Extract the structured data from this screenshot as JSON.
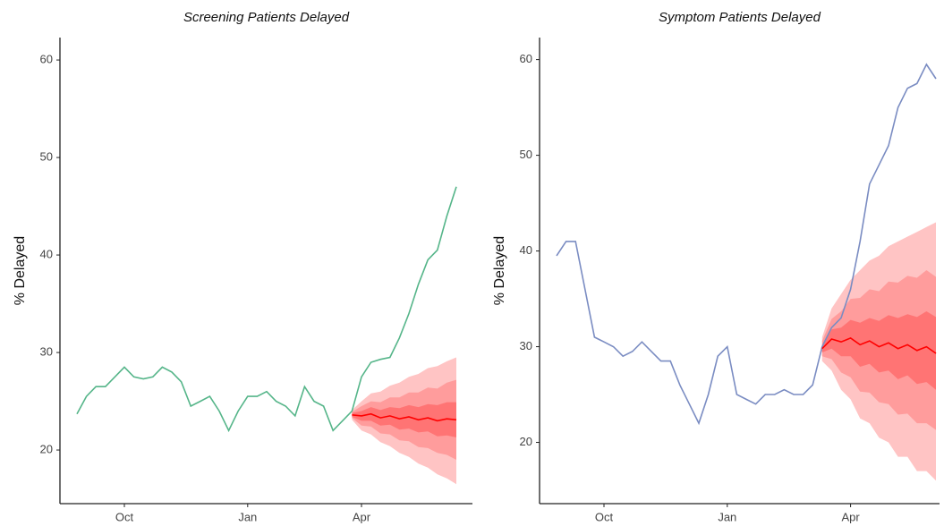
{
  "chart_data": [
    {
      "type": "line",
      "title": "Screening Patients Delayed",
      "y_label": "% Delayed",
      "categories": [
        null,
        null,
        null,
        null,
        null,
        "Oct",
        null,
        null,
        null,
        null,
        null,
        null,
        null,
        null,
        null,
        null,
        null,
        null,
        "Jan",
        null,
        null,
        null,
        null,
        null,
        null,
        null,
        null,
        null,
        null,
        null,
        "Apr",
        null,
        null,
        null,
        null,
        null,
        null,
        null,
        null,
        null,
        null
      ],
      "ylim": [
        14.5,
        62.3
      ],
      "yticks": [
        20,
        30,
        40,
        50,
        60
      ],
      "series": [
        {
          "color": "#55b589",
          "values": [
            23.7,
            25.5,
            26.5,
            26.5,
            27.5,
            28.5,
            27.5,
            27.3,
            27.5,
            28.5,
            28,
            27,
            24.5,
            25,
            25.5,
            24,
            22,
            24,
            25.5,
            25.5,
            26,
            25,
            24.5,
            23.5,
            26.5,
            25,
            24.5,
            22,
            23,
            24,
            27.5,
            29,
            29.3,
            29.5,
            31.5,
            34,
            37,
            39.5,
            40.5,
            44,
            47
          ]
        },
        {
          "color": "#ff0000",
          "values": [
            null,
            null,
            null,
            null,
            null,
            null,
            null,
            null,
            null,
            null,
            null,
            null,
            null,
            null,
            null,
            null,
            null,
            null,
            null,
            null,
            null,
            null,
            null,
            null,
            null,
            null,
            null,
            null,
            null,
            23.6,
            23.5,
            23.7,
            23.3,
            23.5,
            23.2,
            23.4,
            23.1,
            23.3,
            23.0,
            23.2,
            23.1
          ]
        }
      ],
      "bands": [
        {
          "color": "#ffc4c4",
          "lower": [
            null,
            null,
            null,
            null,
            null,
            null,
            null,
            null,
            null,
            null,
            null,
            null,
            null,
            null,
            null,
            null,
            null,
            null,
            null,
            null,
            null,
            null,
            null,
            null,
            null,
            null,
            null,
            null,
            null,
            23.1,
            22.0,
            21.6,
            20.8,
            20.4,
            19.7,
            19.3,
            18.6,
            18.2,
            17.5,
            17.1,
            16.5
          ],
          "upper": [
            null,
            null,
            null,
            null,
            null,
            null,
            null,
            null,
            null,
            null,
            null,
            null,
            null,
            null,
            null,
            null,
            null,
            null,
            null,
            null,
            null,
            null,
            null,
            null,
            null,
            null,
            null,
            null,
            null,
            24.1,
            25.0,
            25.8,
            26.0,
            26.6,
            26.9,
            27.5,
            27.8,
            28.4,
            28.6,
            29.1,
            29.5
          ]
        },
        {
          "color": "#ff9c9c",
          "lower": [
            null,
            null,
            null,
            null,
            null,
            null,
            null,
            null,
            null,
            null,
            null,
            null,
            null,
            null,
            null,
            null,
            null,
            null,
            null,
            null,
            null,
            null,
            null,
            null,
            null,
            null,
            null,
            null,
            null,
            23.3,
            22.5,
            22.4,
            21.7,
            21.6,
            21.0,
            20.9,
            20.3,
            20.2,
            19.7,
            19.5,
            19.0
          ],
          "upper": [
            null,
            null,
            null,
            null,
            null,
            null,
            null,
            null,
            null,
            null,
            null,
            null,
            null,
            null,
            null,
            null,
            null,
            null,
            null,
            null,
            null,
            null,
            null,
            null,
            null,
            null,
            null,
            null,
            null,
            23.9,
            24.5,
            25.0,
            24.9,
            25.4,
            25.4,
            25.9,
            25.9,
            26.4,
            26.3,
            26.9,
            27.2
          ]
        },
        {
          "color": "#ff7474",
          "lower": [
            null,
            null,
            null,
            null,
            null,
            null,
            null,
            null,
            null,
            null,
            null,
            null,
            null,
            null,
            null,
            null,
            null,
            null,
            null,
            null,
            null,
            null,
            null,
            null,
            null,
            null,
            null,
            null,
            null,
            23.4,
            23.0,
            23.0,
            22.5,
            22.6,
            22.1,
            22.2,
            21.8,
            21.9,
            21.4,
            21.5,
            21.3
          ],
          "upper": [
            null,
            null,
            null,
            null,
            null,
            null,
            null,
            null,
            null,
            null,
            null,
            null,
            null,
            null,
            null,
            null,
            null,
            null,
            null,
            null,
            null,
            null,
            null,
            null,
            null,
            null,
            null,
            null,
            null,
            23.8,
            24.0,
            24.4,
            24.1,
            24.4,
            24.3,
            24.6,
            24.4,
            24.7,
            24.6,
            24.9,
            24.9
          ]
        }
      ]
    },
    {
      "type": "line",
      "title": "Symptom Patients Delayed",
      "y_label": "% Delayed",
      "categories": [
        null,
        null,
        null,
        null,
        null,
        "Oct",
        null,
        null,
        null,
        null,
        null,
        null,
        null,
        null,
        null,
        null,
        null,
        null,
        "Jan",
        null,
        null,
        null,
        null,
        null,
        null,
        null,
        null,
        null,
        null,
        null,
        null,
        "Apr",
        null,
        null,
        null,
        null,
        null,
        null,
        null,
        null,
        null
      ],
      "ylim": [
        13.6,
        62.3
      ],
      "yticks": [
        20,
        30,
        40,
        50,
        60
      ],
      "series": [
        {
          "color": "#7a8cc2",
          "values": [
            39.5,
            41,
            41,
            36,
            31,
            30.5,
            30,
            29,
            29.5,
            30.5,
            29.5,
            28.5,
            28.5,
            26,
            24,
            22,
            25,
            29,
            30,
            25,
            24.5,
            24,
            25,
            25,
            25.5,
            25,
            25,
            26,
            30,
            32,
            33,
            36,
            41,
            47,
            49,
            51,
            55,
            57,
            57.5,
            59.5,
            58
          ]
        },
        {
          "color": "#ff0000",
          "values": [
            null,
            null,
            null,
            null,
            null,
            null,
            null,
            null,
            null,
            null,
            null,
            null,
            null,
            null,
            null,
            null,
            null,
            null,
            null,
            null,
            null,
            null,
            null,
            null,
            null,
            null,
            null,
            null,
            29.8,
            30.8,
            30.5,
            30.9,
            30.2,
            30.6,
            30.0,
            30.4,
            29.8,
            30.2,
            29.6,
            30.0,
            29.3
          ]
        }
      ],
      "bands": [
        {
          "color": "#ffc4c4",
          "lower": [
            null,
            null,
            null,
            null,
            null,
            null,
            null,
            null,
            null,
            null,
            null,
            null,
            null,
            null,
            null,
            null,
            null,
            null,
            null,
            null,
            null,
            null,
            null,
            null,
            null,
            null,
            null,
            null,
            28.5,
            27.5,
            25.5,
            24.5,
            22.5,
            22,
            20.5,
            20,
            18.5,
            18.5,
            17,
            17,
            16
          ],
          "upper": [
            null,
            null,
            null,
            null,
            null,
            null,
            null,
            null,
            null,
            null,
            null,
            null,
            null,
            null,
            null,
            null,
            null,
            null,
            null,
            null,
            null,
            null,
            null,
            null,
            null,
            null,
            null,
            null,
            31,
            34,
            35.5,
            37,
            38,
            39,
            39.5,
            40.5,
            41,
            41.5,
            42,
            42.5,
            43
          ]
        },
        {
          "color": "#ff9c9c",
          "lower": [
            null,
            null,
            null,
            null,
            null,
            null,
            null,
            null,
            null,
            null,
            null,
            null,
            null,
            null,
            null,
            null,
            null,
            null,
            null,
            null,
            null,
            null,
            null,
            null,
            null,
            null,
            null,
            null,
            29,
            28.7,
            27.3,
            26.8,
            25.3,
            25.2,
            24.2,
            24,
            22.9,
            23,
            22,
            22,
            21.3
          ],
          "upper": [
            null,
            null,
            null,
            null,
            null,
            null,
            null,
            null,
            null,
            null,
            null,
            null,
            null,
            null,
            null,
            null,
            null,
            null,
            null,
            null,
            null,
            null,
            null,
            null,
            null,
            null,
            null,
            null,
            30.6,
            32.9,
            33.7,
            35,
            35.1,
            36,
            35.8,
            36.8,
            36.7,
            37.4,
            37.2,
            38,
            37.3
          ]
        },
        {
          "color": "#ff7474",
          "lower": [
            null,
            null,
            null,
            null,
            null,
            null,
            null,
            null,
            null,
            null,
            null,
            null,
            null,
            null,
            null,
            null,
            null,
            null,
            null,
            null,
            null,
            null,
            null,
            null,
            null,
            null,
            null,
            null,
            29.4,
            29.8,
            29,
            29,
            27.9,
            28.2,
            27.3,
            27.5,
            26.6,
            27,
            26.1,
            26.3,
            25.5
          ],
          "upper": [
            null,
            null,
            null,
            null,
            null,
            null,
            null,
            null,
            null,
            null,
            null,
            null,
            null,
            null,
            null,
            null,
            null,
            null,
            null,
            null,
            null,
            null,
            null,
            null,
            null,
            null,
            null,
            null,
            30.2,
            31.8,
            32,
            32.8,
            32.5,
            33,
            32.7,
            33.3,
            33,
            33.4,
            33.1,
            33.7,
            33.1
          ]
        }
      ]
    }
  ]
}
